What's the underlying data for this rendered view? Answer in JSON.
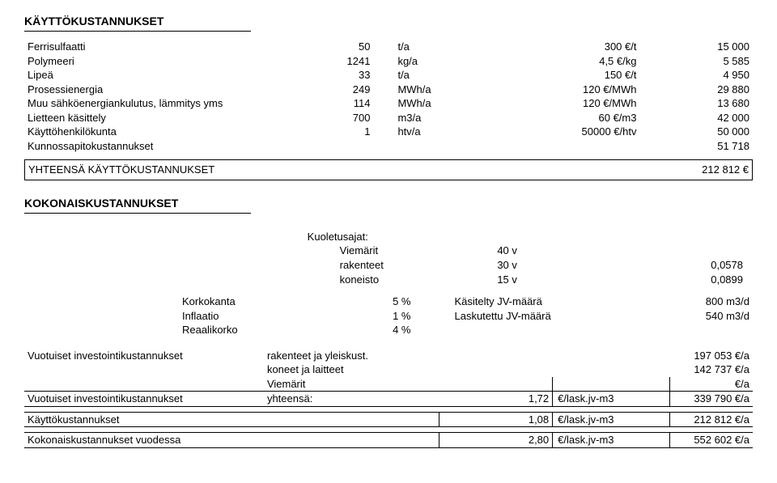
{
  "s1": {
    "title": "KÄYTTÖKUSTANNUKSET",
    "rows": [
      {
        "l": "Ferrisulfaatti",
        "a": "50",
        "b": "t/a",
        "c": "300 €/t",
        "d": "15 000"
      },
      {
        "l": "Polymeeri",
        "a": "1241",
        "b": "kg/a",
        "c": "4,5 €/kg",
        "d": "5 585"
      },
      {
        "l": "Lipeä",
        "a": "33",
        "b": "t/a",
        "c": "150 €/t",
        "d": "4 950"
      },
      {
        "l": "Prosessienergia",
        "a": "249",
        "b": "MWh/a",
        "c": "120 €/MWh",
        "d": "29 880"
      },
      {
        "l": "Muu sähköenergiankulutus, lämmitys yms",
        "a": "114",
        "b": "MWh/a",
        "c": "120 €/MWh",
        "d": "13 680"
      },
      {
        "l": "Lietteen käsittely",
        "a": "700",
        "b": "m3/a",
        "c": "60 €/m3",
        "d": "42 000"
      },
      {
        "l": "Käyttöhenkilökunta",
        "a": "1",
        "b": "htv/a",
        "c": "50000 €/htv",
        "d": "50 000"
      },
      {
        "l": "Kunnossapitokustannukset",
        "a": "",
        "b": "",
        "c": "",
        "d": "51 718"
      }
    ],
    "sum_label": "YHTEENSÄ KÄYTTÖKUSTANNUKSET",
    "sum_value": "212 812 €"
  },
  "s2": {
    "title": "KOKONAISKUSTANNUKSET",
    "kuo_title": "Kuoletusajat:",
    "kuo_rows": [
      {
        "l": "Viemärit",
        "v": "40 v",
        "f": ""
      },
      {
        "l": "rakenteet",
        "v": "30 v",
        "f": "0,0578"
      },
      {
        "l": "koneisto",
        "v": "15 v",
        "f": "0,0899"
      }
    ],
    "p_rows": [
      {
        "l": "Korkokanta",
        "v": "5 %",
        "t": "Käsitelty JV-määrä",
        "u": "800 m3/d"
      },
      {
        "l": "Inflaatio",
        "v": "1 %",
        "t": "Laskutettu JV-määrä",
        "u": "540 m3/d"
      },
      {
        "l": "Reaalikorko",
        "v": "4 %",
        "t": "",
        "u": ""
      }
    ],
    "inv1_label": "Vuotuiset investointikustannukset",
    "inv1_rows": [
      {
        "t": "rakenteet ja yleiskust.",
        "v": "197 053 €/a"
      },
      {
        "t": "koneet ja laitteet",
        "v": "142 737 €/a"
      },
      {
        "t": "Viemärit",
        "v": "€/a"
      }
    ],
    "inv2_label": "Vuotuiset investointikustannukset",
    "inv2_t": "yhteensä:",
    "inv2_rate": "1,72",
    "inv2_unit": "€/lask.jv-m3",
    "inv2_v": "339 790 €/a",
    "op_label": "Käyttökustannukset",
    "op_rate": "1,08",
    "op_unit": "€/lask.jv-m3",
    "op_v": "212 812 €/a",
    "tot_label": "Kokonaiskustannukset vuodessa",
    "tot_rate": "2,80",
    "tot_unit": "€/lask.jv-m3",
    "tot_v": "552 602 €/a"
  }
}
